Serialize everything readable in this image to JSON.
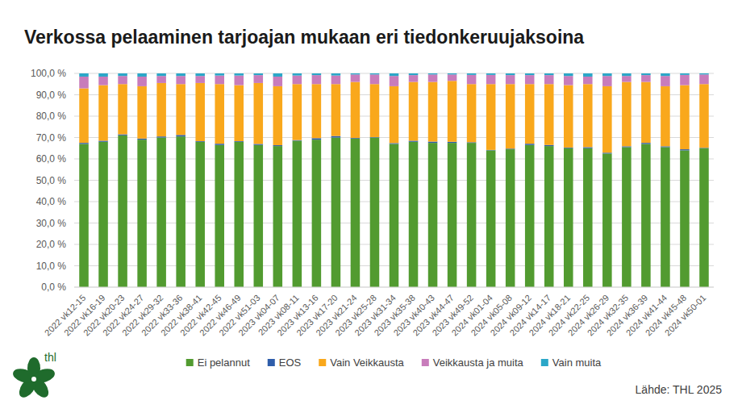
{
  "chart_data": {
    "type": "bar",
    "stacked": true,
    "grid": true,
    "legend": "bottom",
    "title": "Verkossa pelaaminen tarjoajan mukaan eri tiedonkeruujaksoina",
    "source": "Lähde: THL 2025",
    "logo": "thl",
    "categories": [
      "2022 vk12-15",
      "2022 vk16-19",
      "2022 vk20-23",
      "2022 vk24-27",
      "2022 vk29-32",
      "2022 vk33-36",
      "2022 vk38-41",
      "2022 vk42-45",
      "2022 vk46-49",
      "2022 vk51-03",
      "2023 vk04-07",
      "2023 vk08-11",
      "2023 vk13-16",
      "2023 vk17-20",
      "2023 vk21-24",
      "2023 vk25-28",
      "2023 vk31-34",
      "2023 vk35-38",
      "2023 vk40-43",
      "2023 vk44-47",
      "2023 vk49-52",
      "2024 vk01-04",
      "2024 vk05-08",
      "2024 vk09-12",
      "2024 vk14-17",
      "2024 vk18-21",
      "2024 vk22-25",
      "2024 vk26-29",
      "2024 vk32-35",
      "2024 vk36-39",
      "2024 vk41-44",
      "2024 vk45-48",
      "2024 vk50-01"
    ],
    "series": [
      {
        "name": "Ei pelannut",
        "color": "#529b30",
        "values": [
          67,
          68,
          71,
          69,
          70,
          70.5,
          68,
          66.5,
          68,
          66.5,
          66,
          68.5,
          69,
          70,
          69.5,
          70,
          67,
          68,
          67.5,
          67.5,
          67.5,
          64,
          64.5,
          66.5,
          66,
          65,
          65,
          62.5,
          65.5,
          67,
          65.5,
          64,
          65
        ]
      },
      {
        "name": "EOS",
        "color": "#2e5daa",
        "values": [
          0.5,
          0.5,
          0.5,
          0.5,
          0.5,
          0.7,
          0.3,
          0.6,
          0.3,
          0.5,
          0.4,
          0.3,
          0.7,
          0.7,
          0.3,
          0.2,
          0.4,
          0.5,
          0.6,
          0.5,
          0.3,
          0.2,
          0.3,
          0.6,
          0.5,
          0.3,
          0.5,
          0.4,
          0.4,
          0.5,
          0.4,
          0.5,
          0.2
        ]
      },
      {
        "name": "Vain Veikkausta",
        "color": "#f9a81c",
        "values": [
          25.5,
          26,
          23.5,
          24.5,
          25,
          23.8,
          27.2,
          27.9,
          26.2,
          28.5,
          27.6,
          26.2,
          25.3,
          24.3,
          26.2,
          24.8,
          26.6,
          27.5,
          27.9,
          28.5,
          27.2,
          30.8,
          30.2,
          27.9,
          28.5,
          29.2,
          29.5,
          31.1,
          30.1,
          28.5,
          28.1,
          30,
          29.8
        ]
      },
      {
        "name": "Veikkausta ja muita",
        "color": "#c87cbb",
        "values": [
          5.5,
          4,
          3.8,
          4.5,
          3.3,
          3.8,
          3.3,
          4,
          4.5,
          3.7,
          4.5,
          4,
          4.2,
          4,
          3.5,
          4.5,
          4.8,
          3.2,
          3.5,
          3,
          4.3,
          4.3,
          4.2,
          4.2,
          4.2,
          4.3,
          3.5,
          4.8,
          2.8,
          3.2,
          4.8,
          4.8,
          4.5
        ]
      },
      {
        "name": "Vain muita",
        "color": "#2ba7c8",
        "values": [
          1.5,
          1.5,
          1.2,
          1.5,
          1.2,
          1.2,
          1.2,
          1,
          1,
          0.8,
          1.5,
          1,
          0.8,
          1,
          0.5,
          0.5,
          1.2,
          0.8,
          0.5,
          0.5,
          0.7,
          0.7,
          0.8,
          0.8,
          0.8,
          1.2,
          1.5,
          1.2,
          1.2,
          0.8,
          1.2,
          0.7,
          0.5
        ]
      }
    ],
    "ylim": [
      0,
      100
    ],
    "yticks": [
      {
        "value": 0,
        "label": "0,0 %"
      },
      {
        "value": 10,
        "label": "10,0 %"
      },
      {
        "value": 20,
        "label": "20,0 %"
      },
      {
        "value": 30,
        "label": "30,0 %"
      },
      {
        "value": 40,
        "label": "40,0 %"
      },
      {
        "value": 50,
        "label": "50,0 %"
      },
      {
        "value": 60,
        "label": "60,0 %"
      },
      {
        "value": 70,
        "label": "70,0 %"
      },
      {
        "value": 80,
        "label": "80,0 %"
      },
      {
        "value": 90,
        "label": "90,0 %"
      },
      {
        "value": 100,
        "label": "100,0 %"
      }
    ]
  }
}
